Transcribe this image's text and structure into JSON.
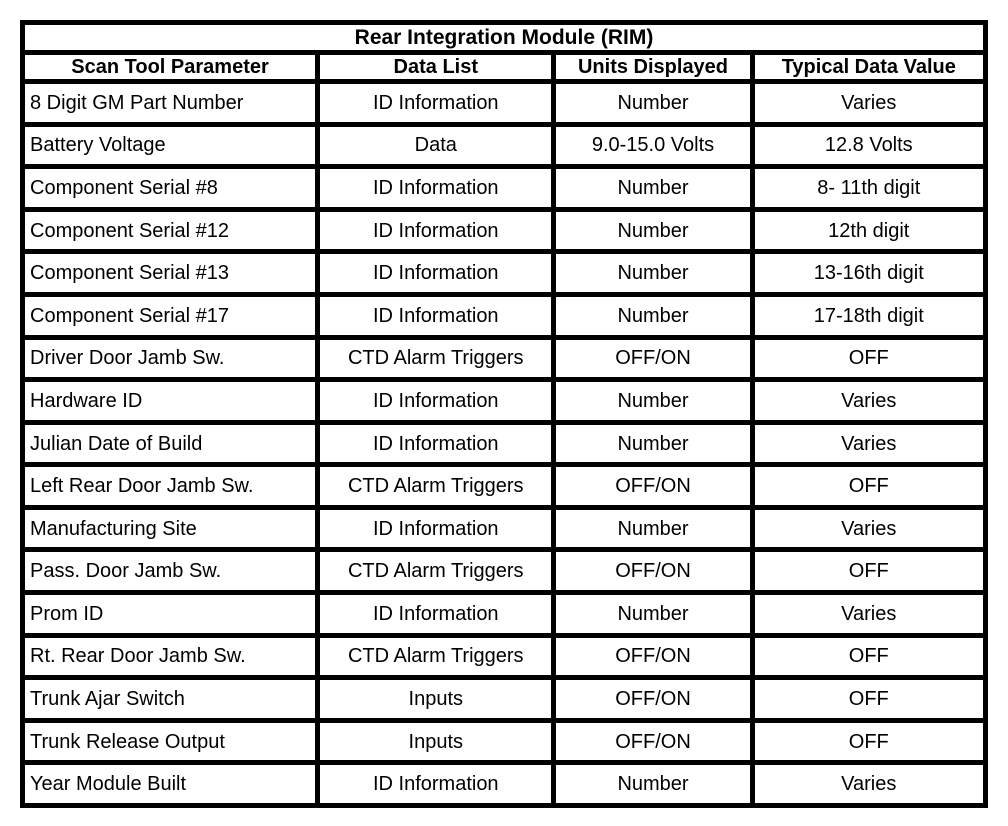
{
  "table": {
    "title": "Rear Integration Module (RIM)",
    "columns": [
      "Scan Tool Parameter",
      "Data List",
      "Units Displayed",
      "Typical Data Value"
    ],
    "rows": [
      [
        "8 Digit GM Part Number",
        "ID Information",
        "Number",
        "Varies"
      ],
      [
        "Battery Voltage",
        "Data",
        "9.0-15.0 Volts",
        "12.8 Volts"
      ],
      [
        "Component Serial #8",
        "ID Information",
        "Number",
        "8- 11th digit"
      ],
      [
        "Component Serial #12",
        "ID Information",
        "Number",
        "12th digit"
      ],
      [
        "Component Serial #13",
        "ID Information",
        "Number",
        "13-16th digit"
      ],
      [
        "Component Serial #17",
        "ID Information",
        "Number",
        "17-18th digit"
      ],
      [
        "Driver Door Jamb Sw.",
        "CTD Alarm Triggers",
        "OFF/ON",
        "OFF"
      ],
      [
        "Hardware ID",
        "ID Information",
        "Number",
        "Varies"
      ],
      [
        "Julian Date of Build",
        "ID Information",
        "Number",
        "Varies"
      ],
      [
        "Left Rear Door Jamb Sw.",
        "CTD Alarm Triggers",
        "OFF/ON",
        "OFF"
      ],
      [
        "Manufacturing Site",
        "ID Information",
        "Number",
        "Varies"
      ],
      [
        "Pass. Door Jamb Sw.",
        "CTD Alarm Triggers",
        "OFF/ON",
        "OFF"
      ],
      [
        "Prom ID",
        "ID Information",
        "Number",
        "Varies"
      ],
      [
        "Rt. Rear Door Jamb Sw.",
        "CTD Alarm Triggers",
        "OFF/ON",
        "OFF"
      ],
      [
        "Trunk Ajar Switch",
        "Inputs",
        "OFF/ON",
        "OFF"
      ],
      [
        "Trunk Release Output",
        "Inputs",
        "OFF/ON",
        "OFF"
      ],
      [
        "Year Module Built",
        "ID Information",
        "Number",
        "Varies"
      ]
    ],
    "colors": {
      "border": "#000000",
      "background": "#ffffff",
      "text": "#000000"
    }
  }
}
